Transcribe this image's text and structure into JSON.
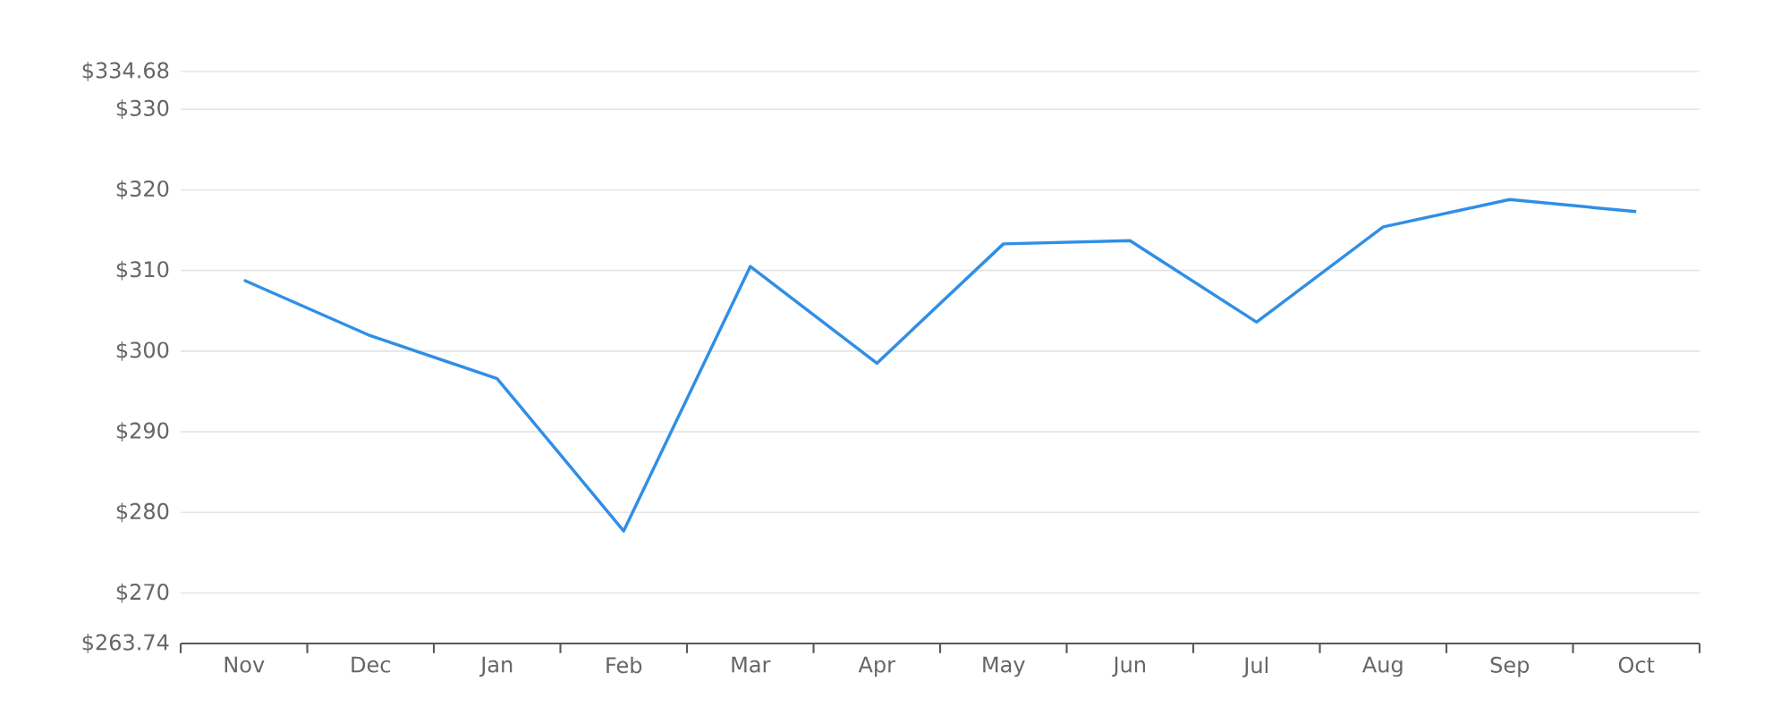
{
  "chart_data": {
    "type": "line",
    "categories": [
      "Nov",
      "Dec",
      "Jan",
      "Feb",
      "Mar",
      "Apr",
      "May",
      "Jun",
      "Jul",
      "Aug",
      "Sep",
      "Oct"
    ],
    "values": [
      308.8,
      301.9,
      296.6,
      277.7,
      310.5,
      298.5,
      313.3,
      313.7,
      303.6,
      315.4,
      318.8,
      317.3
    ],
    "color": "#2f8fe6",
    "ylim": [
      263.74,
      334.68
    ],
    "yticks": [
      {
        "value": 263.74,
        "label": "$263.74"
      },
      {
        "value": 270,
        "label": "$270"
      },
      {
        "value": 280,
        "label": "$280"
      },
      {
        "value": 290,
        "label": "$290"
      },
      {
        "value": 300,
        "label": "$300"
      },
      {
        "value": 310,
        "label": "$310"
      },
      {
        "value": 320,
        "label": "$320"
      },
      {
        "value": 330,
        "label": "$330"
      },
      {
        "value": 334.68,
        "label": "$334.68"
      }
    ],
    "grid": "y",
    "marker": "none",
    "line_style": "solid"
  }
}
